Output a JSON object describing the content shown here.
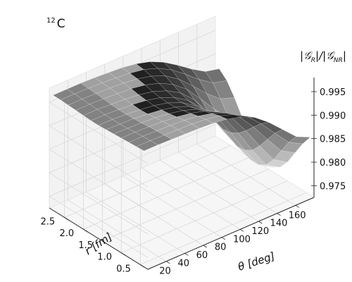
{
  "chart_data": {
    "type": "surface3d",
    "title_sup": "12",
    "title_main": "C",
    "xlabel": "r [fm]",
    "ylabel": "θ [deg]",
    "zlabel": "|𝒢_R|/|𝒢_NR|",
    "zlabel_parts": {
      "g": "𝒢",
      "r": "R",
      "nr": "NR"
    },
    "xlim": [
      0.3,
      2.9
    ],
    "ylim": [
      0,
      180
    ],
    "zlim": [
      0.9725,
      0.998
    ],
    "xticks": [
      "0.5",
      "1.0",
      "1.5",
      "2.0",
      "2.5"
    ],
    "yticks": [
      "20",
      "40",
      "60",
      "80",
      "100",
      "120",
      "140",
      "160"
    ],
    "zticks": [
      "0.975",
      "0.980",
      "0.985",
      "0.990",
      "0.995"
    ],
    "grid": true,
    "colormap": "gray",
    "surface": {
      "r": [
        0.4,
        0.6,
        0.8,
        1.0,
        1.2,
        1.4,
        1.6,
        1.8,
        2.0,
        2.2,
        2.4,
        2.6,
        2.8
      ],
      "theta": [
        0,
        15,
        30,
        45,
        60,
        75,
        90,
        105,
        120,
        135,
        150,
        165,
        180
      ],
      "z": [
        [
          0.9972,
          0.9972,
          0.9971,
          0.997,
          0.9969,
          0.9967,
          0.9963,
          0.9955,
          0.9941,
          0.9918,
          0.989,
          0.9862,
          0.9848
        ],
        [
          0.9971,
          0.9971,
          0.997,
          0.9969,
          0.9968,
          0.9965,
          0.996,
          0.995,
          0.9933,
          0.9905,
          0.9872,
          0.984,
          0.9824
        ],
        [
          0.997,
          0.997,
          0.9969,
          0.9968,
          0.9966,
          0.9962,
          0.9955,
          0.9943,
          0.9922,
          0.9888,
          0.9849,
          0.9812,
          0.9795
        ],
        [
          0.9969,
          0.9969,
          0.9968,
          0.9966,
          0.9963,
          0.9958,
          0.995,
          0.9935,
          0.991,
          0.987,
          0.9825,
          0.9783,
          0.9765
        ],
        [
          0.9968,
          0.9967,
          0.9966,
          0.9964,
          0.996,
          0.9954,
          0.9944,
          0.9927,
          0.9899,
          0.9855,
          0.9806,
          0.9762,
          0.9744
        ],
        [
          0.9967,
          0.9966,
          0.9965,
          0.9962,
          0.9958,
          0.9951,
          0.994,
          0.9921,
          0.9891,
          0.9846,
          0.9796,
          0.9752,
          0.9734
        ],
        [
          0.9966,
          0.9966,
          0.9964,
          0.9961,
          0.9957,
          0.995,
          0.9938,
          0.9918,
          0.9888,
          0.9843,
          0.9794,
          0.9752,
          0.9735
        ],
        [
          0.9966,
          0.9966,
          0.9964,
          0.9962,
          0.9958,
          0.9951,
          0.9939,
          0.992,
          0.9891,
          0.9848,
          0.9802,
          0.9763,
          0.9747
        ],
        [
          0.9967,
          0.9967,
          0.9965,
          0.9963,
          0.996,
          0.9954,
          0.9943,
          0.9926,
          0.9899,
          0.986,
          0.9819,
          0.9784,
          0.977
        ],
        [
          0.9968,
          0.9968,
          0.9967,
          0.9965,
          0.9963,
          0.9958,
          0.9949,
          0.9934,
          0.9911,
          0.9878,
          0.9843,
          0.9813,
          0.9801
        ],
        [
          0.9969,
          0.9969,
          0.9968,
          0.9967,
          0.9965,
          0.9961,
          0.9954,
          0.9942,
          0.9922,
          0.9895,
          0.9866,
          0.9842,
          0.9832
        ],
        [
          0.997,
          0.997,
          0.9969,
          0.9968,
          0.9966,
          0.9963,
          0.9958,
          0.9948,
          0.9932,
          0.991,
          0.9886,
          0.9866,
          0.9858
        ],
        [
          0.997,
          0.997,
          0.997,
          0.9969,
          0.9967,
          0.9965,
          0.996,
          0.9952,
          0.9938,
          0.9919,
          0.9898,
          0.988,
          0.9873
        ]
      ]
    }
  }
}
